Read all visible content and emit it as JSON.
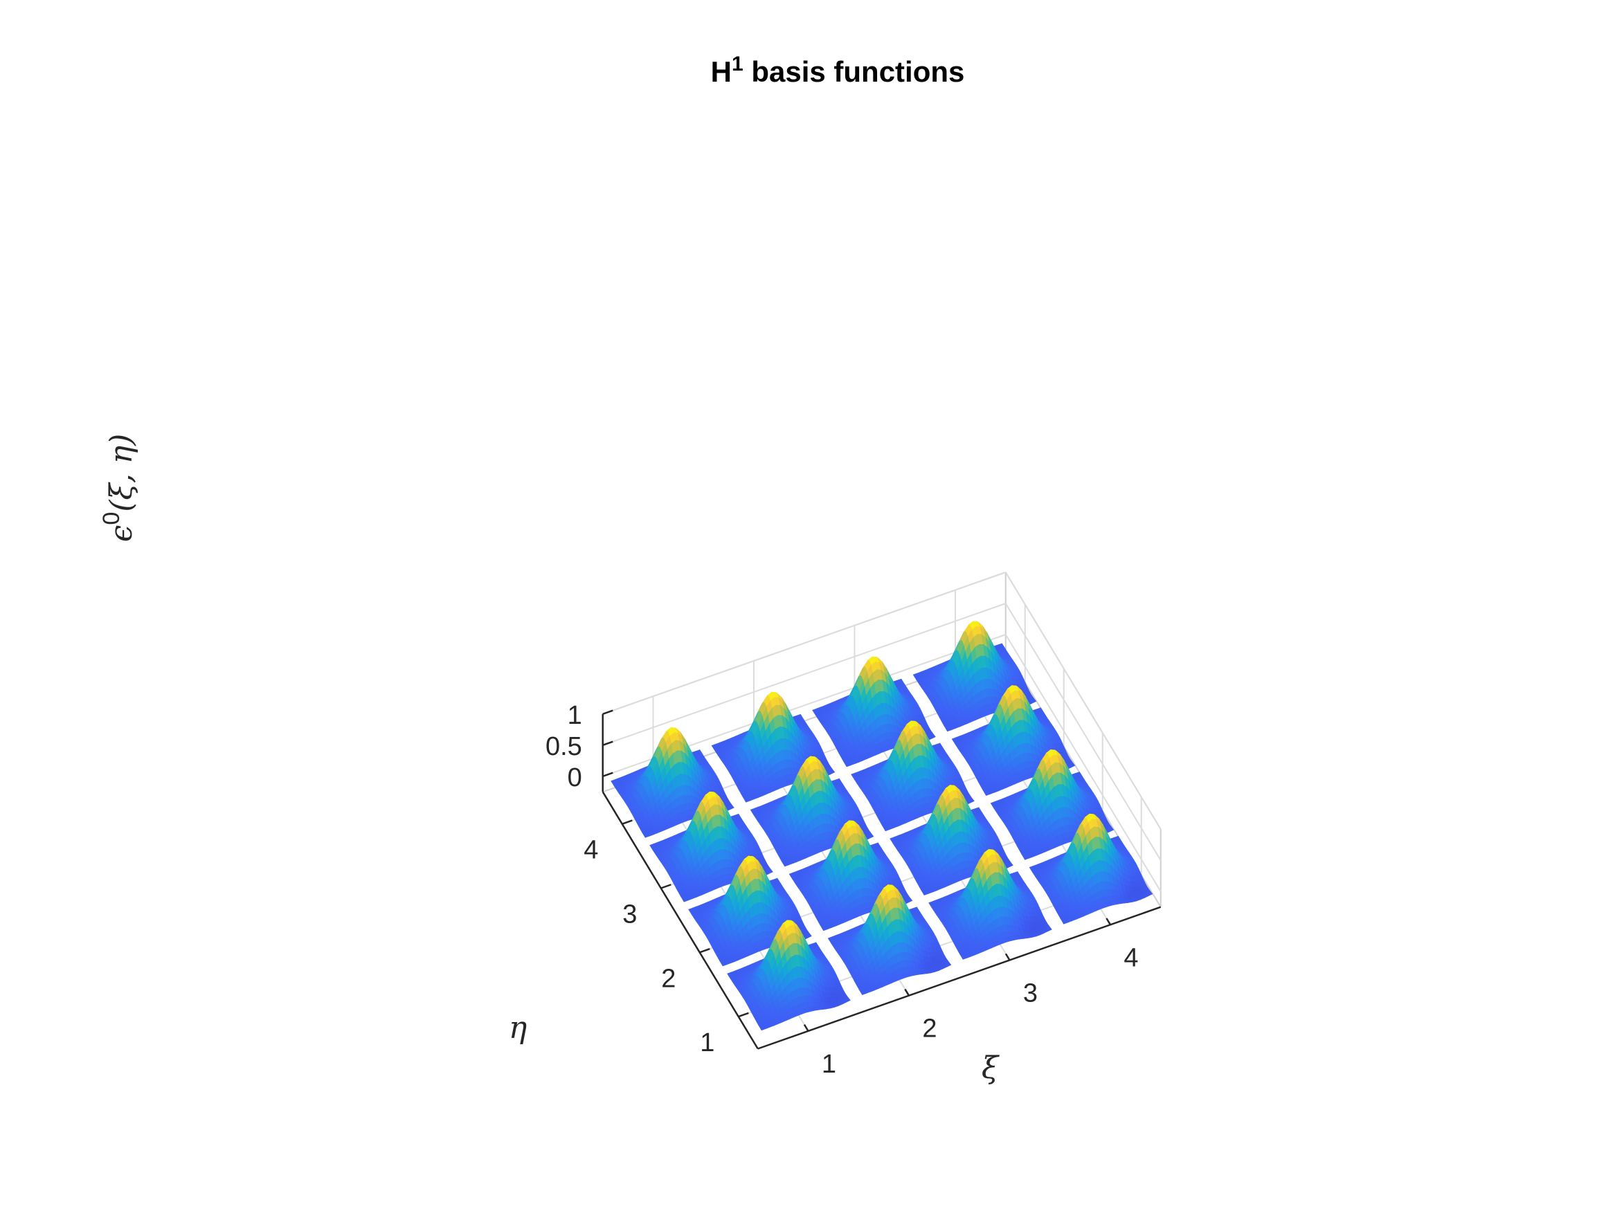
{
  "chart_data": {
    "type": "surface",
    "title": "H",
    "title_superscript": "1",
    "title_rest": " basis functions",
    "xlabel": "ξ",
    "ylabel": "η",
    "zlabel_prefix": "ϵ",
    "zlabel_superscript": "0",
    "zlabel_rest": "(ξ, η)",
    "x_ticks": [
      "1",
      "2",
      "3",
      "4"
    ],
    "y_ticks": [
      "1",
      "2",
      "3",
      "4"
    ],
    "z_ticks": [
      "0",
      "0.5",
      "1"
    ],
    "xlim": [
      0.5,
      4.5
    ],
    "ylim": [
      0.5,
      4.5
    ],
    "zlim": [
      -0.25,
      1
    ],
    "colormap": "parula",
    "grid": true,
    "patches_grid": [
      4,
      4
    ],
    "peak_value": 1
  }
}
